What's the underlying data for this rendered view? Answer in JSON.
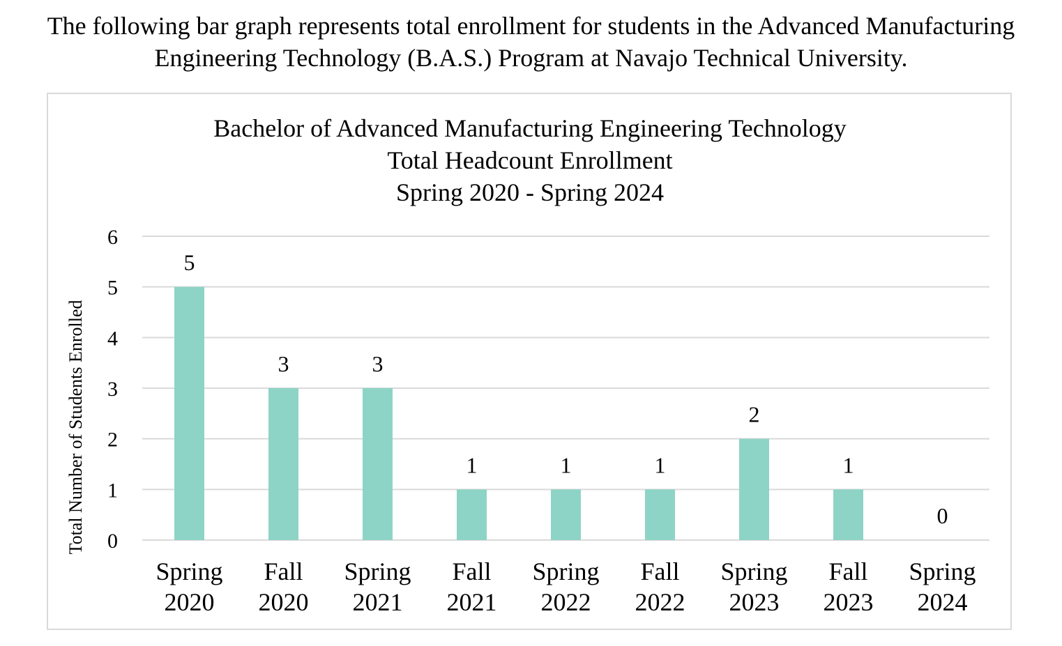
{
  "intro": {
    "line1": "The following bar graph represents total enrollment for students in the Advanced Manufacturing",
    "line2": "Engineering Technology (B.A.S.) Program at Navajo Technical University."
  },
  "chart_data": {
    "type": "bar",
    "title": [
      "Bachelor of Advanced Manufacturing Engineering Technology",
      "Total Headcount Enrollment",
      "Spring 2020 - Spring 2024"
    ],
    "xlabel": "",
    "ylabel": "Total Number of Students Enrolled",
    "categories": [
      [
        "Spring",
        "2020"
      ],
      [
        "Fall",
        "2020"
      ],
      [
        "Spring",
        "2021"
      ],
      [
        "Fall",
        "2021"
      ],
      [
        "Spring",
        "2022"
      ],
      [
        "Fall",
        "2022"
      ],
      [
        "Spring",
        "2023"
      ],
      [
        "Fall",
        "2023"
      ],
      [
        "Spring",
        "2024"
      ]
    ],
    "values": [
      5,
      3,
      3,
      1,
      1,
      1,
      2,
      1,
      0
    ],
    "data_labels": [
      "5",
      "3",
      "3",
      "1",
      "1",
      "1",
      "2",
      "1",
      "0"
    ],
    "yticks": [
      "0",
      "1",
      "2",
      "3",
      "4",
      "5",
      "6"
    ],
    "ylim": [
      0,
      6
    ],
    "grid": true,
    "legend": "none",
    "bar_color": "#8dd4c6",
    "grid_color": "#d9d9d9"
  }
}
